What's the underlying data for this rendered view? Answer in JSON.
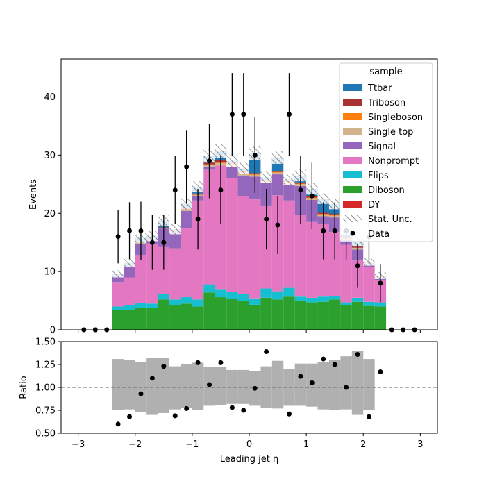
{
  "chart_data": {
    "type": "bar",
    "xlabel": "Leading jet  η",
    "main": {
      "ylabel": "Events",
      "ylim": [
        0,
        46.5
      ],
      "yticks": [
        0,
        10,
        20,
        30,
        40
      ],
      "stack_order": [
        "Diboson",
        "Flips",
        "Nonprompt",
        "Signal",
        "Single top",
        "Singleboson",
        "Triboson",
        "Ttbar"
      ],
      "colors": {
        "Ttbar": "#1f77b4",
        "Triboson": "#a83232",
        "Singleboson": "#ff7f0e",
        "Single top": "#d2b48c",
        "Signal": "#9467bd",
        "Nonprompt": "#e377c2",
        "Flips": "#17becf",
        "Diboson": "#2ca02c",
        "DY": "#d62728"
      },
      "bins": [
        {
          "lo": -2.4,
          "hi": -2.2,
          "Diboson": 3.4,
          "Flips": 0.6,
          "Nonprompt": 4.2,
          "Signal": 1.2,
          "Single top": 0,
          "Singleboson": 0,
          "Triboson": 0,
          "Ttbar": 0.2,
          "unc": 0.6
        },
        {
          "lo": -2.2,
          "hi": -2.0,
          "Diboson": 3.4,
          "Flips": 0.8,
          "Nonprompt": 4.8,
          "Signal": 2.0,
          "Single top": 0,
          "Singleboson": 0,
          "Triboson": 0,
          "Ttbar": 0.5,
          "unc": 0.7
        },
        {
          "lo": -2.0,
          "hi": -1.8,
          "Diboson": 3.8,
          "Flips": 0.8,
          "Nonprompt": 8.2,
          "Signal": 2.0,
          "Single top": 0.1,
          "Singleboson": 0,
          "Triboson": 0.1,
          "Ttbar": 0.8,
          "unc": 0.9
        },
        {
          "lo": -1.8,
          "hi": -1.6,
          "Diboson": 3.7,
          "Flips": 0.8,
          "Nonprompt": 10.3,
          "Signal": 0.6,
          "Single top": 0.1,
          "Singleboson": 0,
          "Triboson": 0.1,
          "Ttbar": 0.5,
          "unc": 0.9
        },
        {
          "lo": -1.6,
          "hi": -1.4,
          "Diboson": 5.2,
          "Flips": 0.9,
          "Nonprompt": 8.1,
          "Signal": 3.2,
          "Single top": 0.1,
          "Singleboson": 0,
          "Triboson": 0.1,
          "Ttbar": 1.2,
          "unc": 1.0
        },
        {
          "lo": -1.4,
          "hi": -1.2,
          "Diboson": 4.2,
          "Flips": 1.0,
          "Nonprompt": 8.8,
          "Signal": 3.0,
          "Single top": 0.1,
          "Singleboson": 0,
          "Triboson": 0.1,
          "Ttbar": 0.1,
          "unc": 0.9
        },
        {
          "lo": -1.2,
          "hi": -1.0,
          "Diboson": 4.5,
          "Flips": 1.1,
          "Nonprompt": 11.8,
          "Signal": 3.0,
          "Single top": 0.3,
          "Singleboson": 0,
          "Triboson": 0.2,
          "Ttbar": 0.8,
          "unc": 1.0
        },
        {
          "lo": -1.0,
          "hi": -0.8,
          "Diboson": 4.0,
          "Flips": 1.2,
          "Nonprompt": 17.0,
          "Signal": 0.8,
          "Single top": 0.2,
          "Singleboson": 0,
          "Triboson": 0.2,
          "Ttbar": 1.2,
          "unc": 1.0
        },
        {
          "lo": -0.8,
          "hi": -0.6,
          "Diboson": 6.4,
          "Flips": 1.4,
          "Nonprompt": 19.7,
          "Signal": 0.5,
          "Single top": 0.4,
          "Singleboson": 0,
          "Triboson": 0.3,
          "Ttbar": 1.2,
          "unc": 1.1
        },
        {
          "lo": -0.6,
          "hi": -0.4,
          "Diboson": 5.6,
          "Flips": 1.4,
          "Nonprompt": 21.2,
          "Signal": 0,
          "Single top": 0.4,
          "Singleboson": 0.1,
          "Triboson": 0.4,
          "Ttbar": 1.6,
          "unc": 1.2
        },
        {
          "lo": -0.4,
          "hi": -0.2,
          "Diboson": 5.3,
          "Flips": 1.2,
          "Nonprompt": 19.5,
          "Signal": 2.0,
          "Single top": 0.4,
          "Singleboson": 0.1,
          "Triboson": 0.2,
          "Ttbar": 0.3,
          "unc": 1.1
        },
        {
          "lo": -0.2,
          "hi": 0.0,
          "Diboson": 5.0,
          "Flips": 1.2,
          "Nonprompt": 16.7,
          "Signal": 3.6,
          "Single top": 0.4,
          "Singleboson": 0.1,
          "Triboson": 0.2,
          "Ttbar": 0.5,
          "unc": 1.0
        },
        {
          "lo": 0.0,
          "hi": 0.2,
          "Diboson": 4.3,
          "Flips": 1.1,
          "Nonprompt": 17.0,
          "Signal": 3.9,
          "Single top": 0.3,
          "Singleboson": 0.1,
          "Triboson": 0.2,
          "Ttbar": 3.5,
          "unc": 1.2
        },
        {
          "lo": 0.2,
          "hi": 0.4,
          "Diboson": 5.5,
          "Flips": 1.6,
          "Nonprompt": 14.1,
          "Signal": 4.0,
          "Single top": 0.3,
          "Singleboson": 0.1,
          "Triboson": 0.2,
          "Ttbar": 0.4,
          "unc": 1.0
        },
        {
          "lo": 0.4,
          "hi": 0.6,
          "Diboson": 5.2,
          "Flips": 1.4,
          "Nonprompt": 16.5,
          "Signal": 3.6,
          "Single top": 0.3,
          "Singleboson": 0.1,
          "Triboson": 0.2,
          "Ttbar": 2.3,
          "unc": 1.1
        },
        {
          "lo": 0.6,
          "hi": 0.8,
          "Diboson": 5.7,
          "Flips": 1.5,
          "Nonprompt": 15.0,
          "Signal": 2.8,
          "Single top": 0.3,
          "Singleboson": 0.1,
          "Triboson": 0.2,
          "Ttbar": 0.2,
          "unc": 1.0
        },
        {
          "lo": 0.8,
          "hi": 1.0,
          "Diboson": 4.9,
          "Flips": 0.8,
          "Nonprompt": 14.0,
          "Signal": 5.0,
          "Single top": 0.3,
          "Singleboson": 0.1,
          "Triboson": 0.2,
          "Ttbar": 1.2,
          "unc": 1.0
        },
        {
          "lo": 1.0,
          "hi": 1.2,
          "Diboson": 4.7,
          "Flips": 0.8,
          "Nonprompt": 13.0,
          "Signal": 3.8,
          "Single top": 0.3,
          "Singleboson": 0.1,
          "Triboson": 0.2,
          "Ttbar": 1.3,
          "unc": 1.0
        },
        {
          "lo": 1.2,
          "hi": 1.4,
          "Diboson": 4.8,
          "Flips": 0.9,
          "Nonprompt": 12.5,
          "Signal": 1.3,
          "Single top": 0.3,
          "Singleboson": 0.1,
          "Triboson": 0.2,
          "Ttbar": 2.4,
          "unc": 0.9
        },
        {
          "lo": 1.4,
          "hi": 1.6,
          "Diboson": 5.2,
          "Flips": 0.6,
          "Nonprompt": 11.0,
          "Signal": 2.5,
          "Single top": 0.3,
          "Singleboson": 0.1,
          "Triboson": 0.2,
          "Ttbar": 1.7,
          "unc": 0.9
        },
        {
          "lo": 1.6,
          "hi": 1.8,
          "Diboson": 4.2,
          "Flips": 0.5,
          "Nonprompt": 9.9,
          "Signal": 0.8,
          "Single top": 0.3,
          "Singleboson": 0.1,
          "Triboson": 0.2,
          "Ttbar": 1.1,
          "unc": 0.9
        },
        {
          "lo": 1.8,
          "hi": 2.0,
          "Diboson": 4.8,
          "Flips": 0.7,
          "Nonprompt": 6.4,
          "Signal": 1.9,
          "Single top": 0.3,
          "Singleboson": 0,
          "Triboson": 0.2,
          "Ttbar": 0.8,
          "unc": 0.8
        },
        {
          "lo": 2.0,
          "hi": 2.2,
          "Diboson": 4.1,
          "Flips": 0.7,
          "Nonprompt": 6.0,
          "Signal": 0.6,
          "Single top": 0.1,
          "Singleboson": 0,
          "Triboson": 0.1,
          "Ttbar": 0.1,
          "unc": 0.7
        },
        {
          "lo": 2.2,
          "hi": 2.4,
          "Diboson": 4.0,
          "Flips": 0.7,
          "Nonprompt": 3.8,
          "Signal": 0.5,
          "Single top": 0.1,
          "Singleboson": 0,
          "Triboson": 0.1,
          "Ttbar": 0.1,
          "unc": 0.6
        }
      ],
      "data_points": [
        {
          "x": -2.9,
          "y": 0,
          "err": 0
        },
        {
          "x": -2.7,
          "y": 0,
          "err": 0
        },
        {
          "x": -2.5,
          "y": 0,
          "err": 0
        },
        {
          "x": -2.3,
          "y": 16,
          "err": 4.6
        },
        {
          "x": -2.1,
          "y": 17,
          "err": 4.9
        },
        {
          "x": -1.9,
          "y": 17,
          "err": 5.0
        },
        {
          "x": -1.7,
          "y": 15,
          "err": 4.7
        },
        {
          "x": -1.5,
          "y": 15,
          "err": 4.7
        },
        {
          "x": -1.3,
          "y": 24,
          "err": 5.8
        },
        {
          "x": -1.1,
          "y": 28,
          "err": 6.3
        },
        {
          "x": -0.9,
          "y": 19,
          "err": 5.2
        },
        {
          "x": -0.7,
          "y": 29,
          "err": 6.4
        },
        {
          "x": -0.5,
          "y": 24,
          "err": 5.8
        },
        {
          "x": -0.3,
          "y": 37,
          "err": 7.1
        },
        {
          "x": -0.1,
          "y": 37,
          "err": 7.1
        },
        {
          "x": 0.1,
          "y": 30,
          "err": 6.5
        },
        {
          "x": 0.3,
          "y": 19,
          "err": 5.2
        },
        {
          "x": 0.5,
          "y": 18,
          "err": 5.0
        },
        {
          "x": 0.7,
          "y": 37,
          "err": 7.1
        },
        {
          "x": 0.9,
          "y": 24,
          "err": 5.8
        },
        {
          "x": 1.1,
          "y": 23,
          "err": 5.7
        },
        {
          "x": 1.3,
          "y": 17,
          "err": 4.9
        },
        {
          "x": 1.5,
          "y": 17,
          "err": 4.9
        },
        {
          "x": 1.7,
          "y": 17,
          "err": 4.9
        },
        {
          "x": 1.9,
          "y": 11,
          "err": 3.8
        },
        {
          "x": 2.1,
          "y": 16,
          "err": 4.6
        },
        {
          "x": 2.3,
          "y": 8,
          "err": 3.3
        },
        {
          "x": 2.5,
          "y": 0,
          "err": 0
        },
        {
          "x": 2.7,
          "y": 0,
          "err": 0
        },
        {
          "x": 2.9,
          "y": 0,
          "err": 0
        }
      ]
    },
    "ratio": {
      "ylabel": "Ratio",
      "ylim": [
        0.5,
        1.5
      ],
      "yticks": [
        "0.50",
        "0.75",
        "1.00",
        "1.25",
        "1.50"
      ],
      "ytick_values": [
        0.5,
        0.75,
        1.0,
        1.25,
        1.5
      ],
      "reference_line": 1.0,
      "band": [
        {
          "lo": -2.4,
          "hi": -2.2,
          "down": 0.75,
          "up": 1.31
        },
        {
          "lo": -2.2,
          "hi": -2.0,
          "down": 0.76,
          "up": 1.3
        },
        {
          "lo": -2.0,
          "hi": -1.8,
          "down": 0.73,
          "up": 1.28
        },
        {
          "lo": -1.8,
          "hi": -1.6,
          "down": 0.7,
          "up": 1.32
        },
        {
          "lo": -1.6,
          "hi": -1.4,
          "down": 0.72,
          "up": 1.32
        },
        {
          "lo": -1.4,
          "hi": -1.2,
          "down": 0.76,
          "up": 1.23
        },
        {
          "lo": -1.2,
          "hi": -1.0,
          "down": 0.78,
          "up": 1.25
        },
        {
          "lo": -1.0,
          "hi": -0.8,
          "down": 0.75,
          "up": 1.27
        },
        {
          "lo": -0.8,
          "hi": -0.6,
          "down": 0.8,
          "up": 1.22
        },
        {
          "lo": -0.6,
          "hi": -0.4,
          "down": 0.81,
          "up": 1.22
        },
        {
          "lo": -0.4,
          "hi": -0.2,
          "down": 0.82,
          "up": 1.19
        },
        {
          "lo": -0.2,
          "hi": 0.0,
          "down": 0.82,
          "up": 1.19
        },
        {
          "lo": 0.0,
          "hi": 0.2,
          "down": 0.8,
          "up": 1.18
        },
        {
          "lo": 0.2,
          "hi": 0.4,
          "down": 0.78,
          "up": 1.23
        },
        {
          "lo": 0.4,
          "hi": 0.6,
          "down": 0.77,
          "up": 1.29
        },
        {
          "lo": 0.6,
          "hi": 0.8,
          "down": 0.8,
          "up": 1.2
        },
        {
          "lo": 0.8,
          "hi": 1.0,
          "down": 0.8,
          "up": 1.26
        },
        {
          "lo": 1.0,
          "hi": 1.2,
          "down": 0.79,
          "up": 1.26
        },
        {
          "lo": 1.2,
          "hi": 1.4,
          "down": 0.76,
          "up": 1.28
        },
        {
          "lo": 1.4,
          "hi": 1.6,
          "down": 0.75,
          "up": 1.3
        },
        {
          "lo": 1.6,
          "hi": 1.8,
          "down": 0.76,
          "up": 1.34
        },
        {
          "lo": 1.8,
          "hi": 2.0,
          "down": 0.7,
          "up": 1.4
        },
        {
          "lo": 2.0,
          "hi": 2.2,
          "down": 0.75,
          "up": 1.31
        }
      ],
      "points": [
        {
          "x": -2.3,
          "y": 0.6
        },
        {
          "x": -2.1,
          "y": 0.68
        },
        {
          "x": -1.9,
          "y": 0.93
        },
        {
          "x": -1.7,
          "y": 1.1
        },
        {
          "x": -1.5,
          "y": 1.23
        },
        {
          "x": -1.3,
          "y": 0.69
        },
        {
          "x": -1.1,
          "y": 0.77
        },
        {
          "x": -0.9,
          "y": 1.27
        },
        {
          "x": -0.7,
          "y": 1.03
        },
        {
          "x": -0.5,
          "y": 1.27
        },
        {
          "x": -0.3,
          "y": 0.78
        },
        {
          "x": -0.1,
          "y": 0.75
        },
        {
          "x": 0.1,
          "y": 0.99
        },
        {
          "x": 0.3,
          "y": 1.39
        },
        {
          "x": 0.7,
          "y": 0.71
        },
        {
          "x": 0.9,
          "y": 1.12
        },
        {
          "x": 1.1,
          "y": 1.05
        },
        {
          "x": 1.3,
          "y": 1.31
        },
        {
          "x": 1.5,
          "y": 1.25
        },
        {
          "x": 1.7,
          "y": 1.0
        },
        {
          "x": 1.9,
          "y": 1.36
        },
        {
          "x": 2.1,
          "y": 0.68
        },
        {
          "x": 2.3,
          "y": 1.17
        }
      ]
    },
    "xlim": [
      -3.3,
      3.3
    ],
    "xticks": [
      "−3",
      "−2",
      "−1",
      "0",
      "1",
      "2",
      "3"
    ],
    "xtick_values": [
      -3,
      -2,
      -1,
      0,
      1,
      2,
      3
    ],
    "legend": {
      "placement": "top-right",
      "title": "sample",
      "entries": [
        {
          "label": "Ttbar",
          "kind": "patch",
          "color": "#1f77b4"
        },
        {
          "label": "Triboson",
          "kind": "patch",
          "color": "#a83232"
        },
        {
          "label": "Singleboson",
          "kind": "patch",
          "color": "#ff7f0e"
        },
        {
          "label": "Single top",
          "kind": "patch",
          "color": "#d2b48c"
        },
        {
          "label": "Signal",
          "kind": "patch",
          "color": "#9467bd"
        },
        {
          "label": "Nonprompt",
          "kind": "patch",
          "color": "#e377c2"
        },
        {
          "label": "Flips",
          "kind": "patch",
          "color": "#17becf"
        },
        {
          "label": "Diboson",
          "kind": "patch",
          "color": "#2ca02c"
        },
        {
          "label": "DY",
          "kind": "patch",
          "color": "#d62728"
        },
        {
          "label": "Stat. Unc.",
          "kind": "hatch",
          "color": "#888888"
        },
        {
          "label": "Data",
          "kind": "marker",
          "color": "#000000"
        }
      ]
    }
  }
}
